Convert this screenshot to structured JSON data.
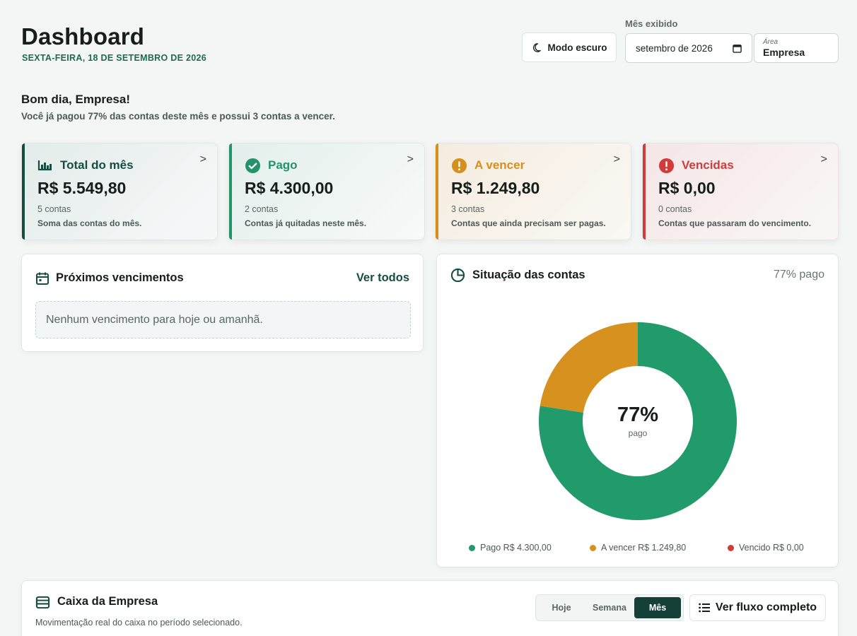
{
  "header": {
    "title": "Dashboard",
    "date": "SEXTA-FEIRA, 18 DE SETEMBRO DE 2026",
    "dark_mode_label": "Modo escuro",
    "month_label": "Mês exibido",
    "month_value": "setembro de 2026",
    "area_label": "Área",
    "area_value": "Empresa"
  },
  "greeting": {
    "title": "Bom dia, Empresa!",
    "subtitle": "Você já pagou 77% das contas deste mês e possui 3 contas a vencer."
  },
  "cards": [
    {
      "title": "Total do mês",
      "value": "R$ 5.549,80",
      "count": "5 contas",
      "desc": "Soma das contas do mês.",
      "arrow": ">",
      "icon": "bar-chart-icon",
      "color": "#164d42"
    },
    {
      "title": "Pago",
      "value": "R$ 4.300,00",
      "count": "2 contas",
      "desc": "Contas já quitadas neste mês.",
      "arrow": ">",
      "icon": "check-circle-icon",
      "color": "#23936a"
    },
    {
      "title": "A vencer",
      "value": "R$ 1.249,80",
      "count": "3 contas",
      "desc": "Contas que ainda precisam ser pagas.",
      "arrow": ">",
      "icon": "alert-circle-icon",
      "color": "#d78f1c"
    },
    {
      "title": "Vencidas",
      "value": "R$ 0,00",
      "count": "0 contas",
      "desc": "Contas que passaram do vencimento.",
      "arrow": ">",
      "icon": "error-circle-icon",
      "color": "#cf3c3c"
    }
  ],
  "upcoming": {
    "title": "Próximos vencimentos",
    "view_all": "Ver todos",
    "empty": "Nenhum vencimento para hoje ou amanhã."
  },
  "status": {
    "title": "Situação das contas",
    "percent_label": "77% pago",
    "center_value": "77%",
    "center_label": "pago",
    "legend": [
      {
        "label": "Pago R$ 4.300,00",
        "color": "#219a6c"
      },
      {
        "label": "A vencer R$ 1.249,80",
        "color": "#d6911f"
      },
      {
        "label": "Vencido R$ 0,00",
        "color": "#cf3c3c"
      }
    ]
  },
  "chart_data": {
    "type": "pie",
    "categories": [
      "Pago",
      "A vencer",
      "Vencido"
    ],
    "values": [
      4300.0,
      1249.8,
      0.0
    ],
    "colors": [
      "#219a6c",
      "#d6911f",
      "#cf3c3c"
    ],
    "title": "Situação das contas",
    "donut": true,
    "center_text": "77%",
    "legend": "bottom"
  },
  "cash": {
    "title": "Caixa da Empresa",
    "subtitle": "Movimentação real do caixa no período selecionado.",
    "periods": [
      "Hoje",
      "Semana",
      "Mês"
    ],
    "active_period": "Mês",
    "flow_button": "Ver fluxo completo"
  }
}
